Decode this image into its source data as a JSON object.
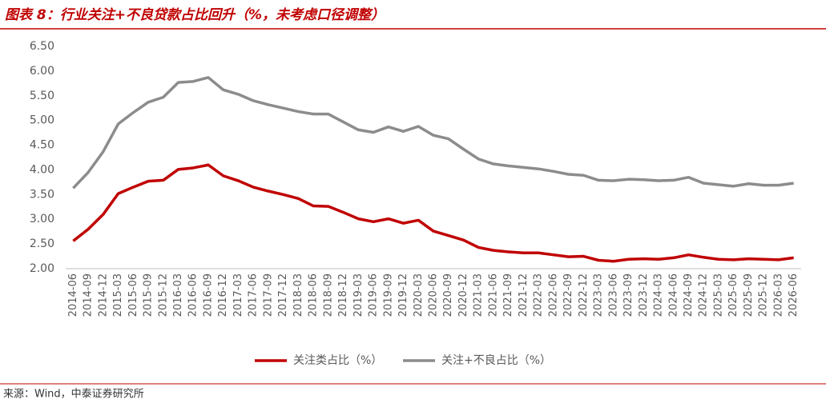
{
  "chart_data": {
    "type": "line",
    "title": "图表 8：行业关注+不良贷款占比回升（%，未考虑口径调整）",
    "source": "来源：Wind，中泰证券研究所",
    "categories": [
      "2014-06",
      "2014-09",
      "2014-12",
      "2015-03",
      "2015-06",
      "2015-09",
      "2015-12",
      "2016-03",
      "2016-06",
      "2016-09",
      "2016-12",
      "2017-03",
      "2017-06",
      "2017-09",
      "2017-12",
      "2018-03",
      "2018-06",
      "2018-09",
      "2018-12",
      "2019-03",
      "2019-06",
      "2019-09",
      "2019-12",
      "2020-03",
      "2020-06",
      "2020-09",
      "2020-12",
      "2021-03",
      "2021-06",
      "2021-09",
      "2021-12",
      "2022-03",
      "2022-06",
      "2022-09",
      "2022-12",
      "2023-03",
      "2023-06",
      "2023-09",
      "2023-12",
      "2024-03",
      "2024-06",
      "2024-09",
      "2024-12",
      "2025-03",
      "2025-06",
      "2025-09",
      "2025-12",
      "2026-03",
      "2026-06"
    ],
    "series": [
      {
        "name": "关注类占比（%）",
        "color": "#c00000",
        "values": [
          2.56,
          2.8,
          3.1,
          3.52,
          3.65,
          3.77,
          3.79,
          4.01,
          4.04,
          4.1,
          3.88,
          3.78,
          3.65,
          3.57,
          3.5,
          3.42,
          3.27,
          3.26,
          3.14,
          3.01,
          2.95,
          3.01,
          2.92,
          2.98,
          2.76,
          2.67,
          2.58,
          2.43,
          2.37,
          2.34,
          2.32,
          2.32,
          2.28,
          2.24,
          2.25,
          2.17,
          2.15,
          2.19,
          2.2,
          2.19,
          2.22,
          2.28,
          2.23,
          2.19,
          2.18,
          2.2,
          2.19,
          2.18,
          2.22
        ]
      },
      {
        "name": "关注+不良占比（%）",
        "color": "#8c8c8c",
        "values": [
          3.63,
          3.95,
          4.37,
          4.93,
          5.16,
          5.37,
          5.47,
          5.77,
          5.79,
          5.87,
          5.62,
          5.53,
          5.4,
          5.32,
          5.25,
          5.18,
          5.13,
          5.13,
          4.97,
          4.81,
          4.76,
          4.87,
          4.78,
          4.88,
          4.7,
          4.63,
          4.42,
          4.22,
          4.12,
          4.08,
          4.05,
          4.02,
          3.97,
          3.91,
          3.89,
          3.79,
          3.78,
          3.81,
          3.8,
          3.78,
          3.79,
          3.85,
          3.73,
          3.7,
          3.67,
          3.72,
          3.69,
          3.69,
          3.73
        ]
      }
    ],
    "ylim": [
      2.0,
      6.5
    ],
    "yticks": [
      {
        "value": 2.0,
        "label": "2.00"
      },
      {
        "value": 2.5,
        "label": "2.50"
      },
      {
        "value": 3.0,
        "label": "3.00"
      },
      {
        "value": 3.5,
        "label": "3.50"
      },
      {
        "value": 4.0,
        "label": "4.00"
      },
      {
        "value": 4.5,
        "label": "4.50"
      },
      {
        "value": 5.0,
        "label": "5.00"
      },
      {
        "value": 5.5,
        "label": "5.50"
      },
      {
        "value": 6.0,
        "label": "6.00"
      },
      {
        "value": 6.5,
        "label": "6.50"
      }
    ],
    "grid": false,
    "legend": "bottom"
  }
}
